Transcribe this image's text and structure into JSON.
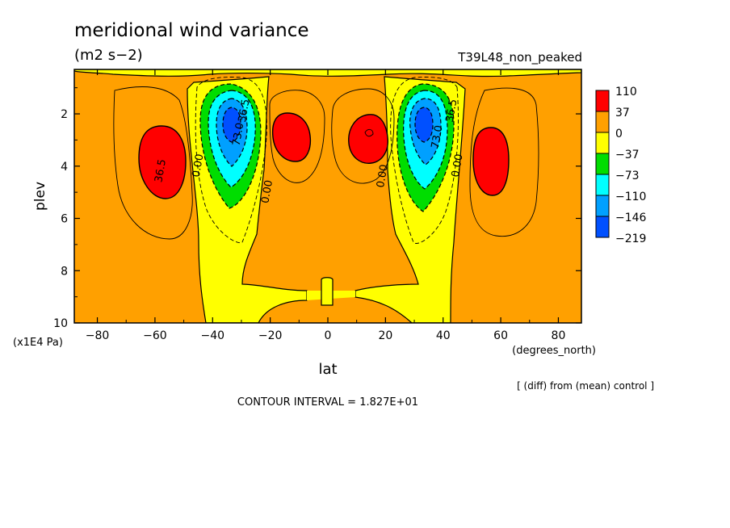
{
  "chart_data": {
    "type": "contour",
    "title": "meridional wind variance",
    "subtitle": "(m2 s−2)",
    "experiment": "T39L48_non_peaked",
    "xlabel": "lat",
    "x_units": "(degrees_north)",
    "ylabel": "plev",
    "y_units": "(x1E4 Pa)",
    "xlim": [
      -88,
      88
    ],
    "ylim": [
      0.3,
      10
    ],
    "y_inverted": true,
    "x_ticks": [
      -80,
      -60,
      -40,
      -20,
      0,
      20,
      40,
      60,
      80
    ],
    "y_ticks": [
      2,
      4,
      6,
      8,
      10
    ],
    "grid": false,
    "contour_interval_text": "CONTOUR INTERVAL = 1.827E+01",
    "diff_note": "[ (diff) from (mean) control ]",
    "legend": {
      "placement": "right",
      "levels": [
        "110",
        "37",
        "0",
        "−37",
        "−73",
        "−110",
        "−146",
        "−219"
      ],
      "colors": [
        "#ff0000",
        "#ffa000",
        "#ffff00",
        "#00dd00",
        "#00ffff",
        "#00a0ff",
        "#0050ff",
        "#ffffff"
      ]
    },
    "contour_labels": [
      {
        "text": "36.5",
        "lat": -57,
        "plev": 4.2
      },
      {
        "text": "0.00",
        "lat": -44,
        "plev": 4.0
      },
      {
        "text": "73.0",
        "lat": -30,
        "plev": 2.8
      },
      {
        "text": "36.5",
        "lat": -28,
        "plev": 1.9
      },
      {
        "text": "0.00",
        "lat": -20,
        "plev": 5.0
      },
      {
        "text": "0.00",
        "lat": 20,
        "plev": 4.4
      },
      {
        "text": "73.0",
        "lat": 39,
        "plev": 2.9
      },
      {
        "text": "36.5",
        "lat": 44,
        "plev": 1.9
      },
      {
        "text": "0.00",
        "lat": 46,
        "plev": 4.0
      }
    ],
    "features": [
      {
        "value_min": 110,
        "lat": -57,
        "plev": 3.7,
        "dlat": 6,
        "dplev": 1.4
      },
      {
        "value_min": 110,
        "lat": 55,
        "plev": 3.7,
        "dlat": 6,
        "dplev": 1.4
      },
      {
        "value_min": 110,
        "lat": -12,
        "plev": 2.6,
        "dlat": 6,
        "dplev": 0.9
      },
      {
        "value_min": 110,
        "lat": 13,
        "plev": 2.6,
        "dlat": 7,
        "dplev": 0.9
      },
      {
        "value_max": -219,
        "lat": -34,
        "plev": 2.3,
        "dlat": 3,
        "dplev": 0.5
      },
      {
        "value_max": -219,
        "lat": 33,
        "plev": 2.3,
        "dlat": 3,
        "dplev": 0.5
      }
    ]
  }
}
